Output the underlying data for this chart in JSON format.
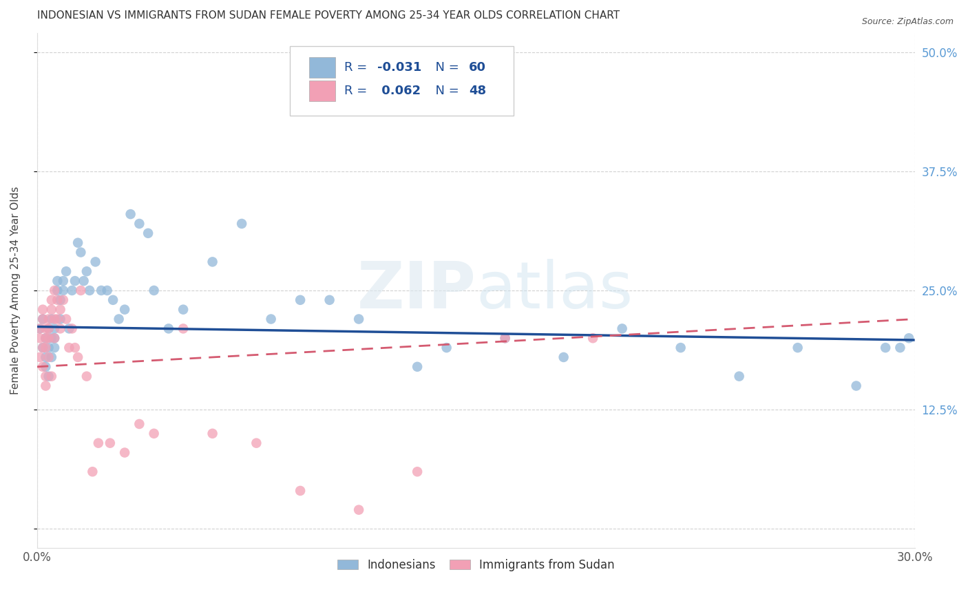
{
  "title": "INDONESIAN VS IMMIGRANTS FROM SUDAN FEMALE POVERTY AMONG 25-34 YEAR OLDS CORRELATION CHART",
  "source": "Source: ZipAtlas.com",
  "ylabel": "Female Poverty Among 25-34 Year Olds",
  "xlim": [
    0.0,
    0.3
  ],
  "ylim": [
    -0.02,
    0.52
  ],
  "indonesian_R": -0.031,
  "indonesian_N": 60,
  "sudan_R": 0.062,
  "sudan_N": 48,
  "indonesian_color": "#92b8d9",
  "sudan_color": "#f2a0b5",
  "indonesian_line_color": "#1f4e96",
  "sudan_line_color": "#d45a70",
  "watermark_color": "#c8d8e8",
  "grid_color": "#cccccc",
  "axis_label_color": "#5b9bd5",
  "title_color": "#333333",
  "legend_text_color": "#1f4e96",
  "legend_R_color": "#d44000",
  "indonesian_x": [
    0.001,
    0.002,
    0.002,
    0.003,
    0.003,
    0.003,
    0.004,
    0.004,
    0.004,
    0.005,
    0.005,
    0.005,
    0.006,
    0.006,
    0.006,
    0.007,
    0.007,
    0.008,
    0.008,
    0.009,
    0.009,
    0.01,
    0.011,
    0.012,
    0.013,
    0.014,
    0.015,
    0.016,
    0.017,
    0.018,
    0.02,
    0.022,
    0.024,
    0.026,
    0.028,
    0.03,
    0.032,
    0.035,
    0.038,
    0.04,
    0.045,
    0.05,
    0.06,
    0.07,
    0.08,
    0.09,
    0.1,
    0.11,
    0.13,
    0.14,
    0.16,
    0.18,
    0.2,
    0.22,
    0.24,
    0.26,
    0.28,
    0.29,
    0.295,
    0.298
  ],
  "indonesian_y": [
    0.21,
    0.19,
    0.22,
    0.2,
    0.18,
    0.17,
    0.21,
    0.19,
    0.16,
    0.2,
    0.18,
    0.22,
    0.19,
    0.21,
    0.2,
    0.25,
    0.26,
    0.22,
    0.24,
    0.25,
    0.26,
    0.27,
    0.21,
    0.25,
    0.26,
    0.3,
    0.29,
    0.26,
    0.27,
    0.25,
    0.28,
    0.25,
    0.25,
    0.24,
    0.22,
    0.23,
    0.33,
    0.32,
    0.31,
    0.25,
    0.21,
    0.23,
    0.28,
    0.32,
    0.22,
    0.24,
    0.24,
    0.22,
    0.17,
    0.19,
    0.2,
    0.18,
    0.21,
    0.19,
    0.16,
    0.19,
    0.15,
    0.19,
    0.19,
    0.2
  ],
  "sudan_x": [
    0.001,
    0.001,
    0.001,
    0.002,
    0.002,
    0.002,
    0.002,
    0.003,
    0.003,
    0.003,
    0.003,
    0.003,
    0.004,
    0.004,
    0.004,
    0.004,
    0.005,
    0.005,
    0.005,
    0.006,
    0.006,
    0.006,
    0.007,
    0.007,
    0.008,
    0.008,
    0.009,
    0.01,
    0.011,
    0.012,
    0.013,
    0.014,
    0.015,
    0.017,
    0.019,
    0.021,
    0.025,
    0.03,
    0.035,
    0.04,
    0.05,
    0.06,
    0.075,
    0.09,
    0.11,
    0.13,
    0.16,
    0.19
  ],
  "sudan_y": [
    0.2,
    0.18,
    0.21,
    0.19,
    0.22,
    0.17,
    0.23,
    0.16,
    0.2,
    0.15,
    0.21,
    0.19,
    0.22,
    0.2,
    0.18,
    0.21,
    0.23,
    0.16,
    0.24,
    0.2,
    0.22,
    0.25,
    0.22,
    0.24,
    0.23,
    0.21,
    0.24,
    0.22,
    0.19,
    0.21,
    0.19,
    0.18,
    0.25,
    0.16,
    0.06,
    0.09,
    0.09,
    0.08,
    0.11,
    0.1,
    0.21,
    0.1,
    0.09,
    0.04,
    0.02,
    0.06,
    0.2,
    0.2
  ],
  "indo_line_x0": 0.0,
  "indo_line_y0": 0.212,
  "indo_line_x1": 0.3,
  "indo_line_y1": 0.198,
  "sudan_line_x0": 0.0,
  "sudan_line_y0": 0.17,
  "sudan_line_x1": 0.3,
  "sudan_line_y1": 0.22
}
